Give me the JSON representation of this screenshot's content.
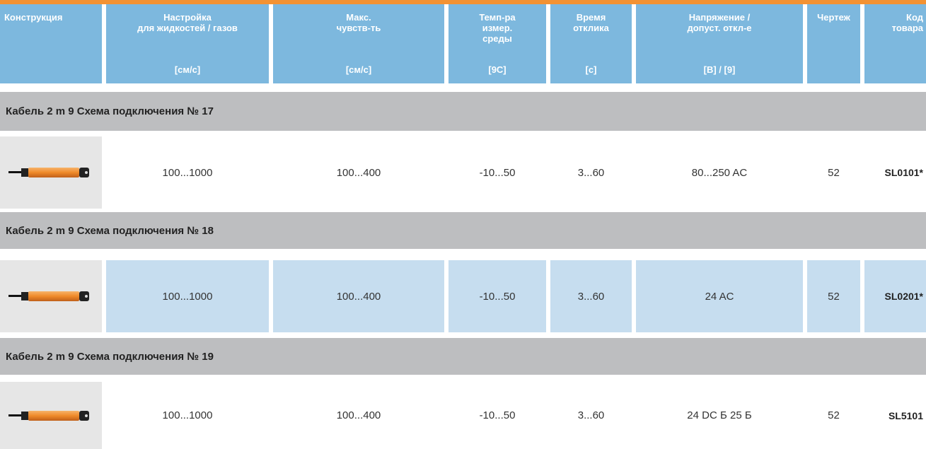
{
  "header": {
    "columns": [
      {
        "lines": [
          "Конструкция"
        ]
      },
      {
        "lines": [
          "Настройка",
          "для жидкостей / газов"
        ],
        "unit": "[см/с]"
      },
      {
        "lines": [
          "Макс.",
          "чувств-ть"
        ],
        "unit": "[см/с]"
      },
      {
        "lines": [
          "Темп-ра",
          "измер.",
          "среды"
        ],
        "unit": "[9C]"
      },
      {
        "lines": [
          "Время",
          "отклика"
        ],
        "unit": "[с]"
      },
      {
        "lines": [
          "Напряжение /",
          "допуст. откл-е"
        ],
        "unit": "[В] / [9]"
      },
      {
        "lines": [
          "Чертеж"
        ]
      },
      {
        "lines": [
          "Код",
          "товара"
        ]
      }
    ]
  },
  "groups": [
    {
      "title": "Кабель 2 m 9 Схема подключения № 17",
      "row": [
        "100...1000",
        "100...400",
        "-10...50",
        "3...60",
        "80...250 AC",
        "52",
        "SL0101*"
      ]
    },
    {
      "title": "Кабель 2 m 9 Схема подключения № 18",
      "row": [
        "100...1000",
        "100...400",
        "-10...50",
        "3...60",
        "24 AC",
        "52",
        "SL0201*"
      ]
    },
    {
      "title": "Кабель 2 m 9 Схема подключения № 19",
      "row": [
        "100...1000",
        "100...400",
        "-10...50",
        "3...60",
        "24 DC Б 25 Б",
        "52",
        "SL5101"
      ]
    }
  ]
}
